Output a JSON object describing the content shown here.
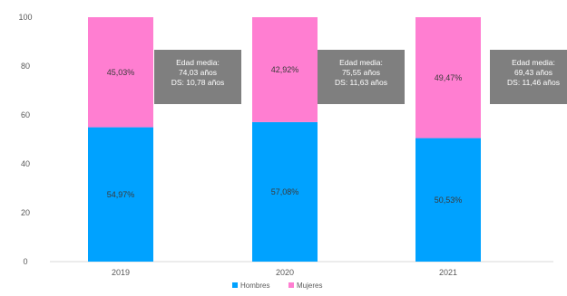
{
  "chart_data": {
    "type": "bar",
    "stacked": true,
    "categories": [
      "2019",
      "2020",
      "2021"
    ],
    "series": [
      {
        "name": "Hombres",
        "values": [
          54.97,
          57.08,
          50.53
        ],
        "labels": [
          "54,97%",
          "57,08%",
          "50,53%"
        ],
        "color": "#00a2ff"
      },
      {
        "name": "Mujeres",
        "values": [
          45.03,
          42.92,
          49.47
        ],
        "labels": [
          "45,03%",
          "42,92%",
          "49,47%"
        ],
        "color": "#ff7ed1"
      }
    ],
    "ylim": [
      0,
      100
    ],
    "yticks": [
      0,
      20,
      40,
      60,
      80,
      100
    ],
    "grid": false,
    "legend": "bottom",
    "annotations": [
      [
        "Edad media:",
        "74,03 años",
        "DS: 10,78 años"
      ],
      [
        "Edad media:",
        "75,55 años",
        "DS: 11,63 años"
      ],
      [
        "Edad media:",
        "69,43 años",
        "DS: 11,46 años"
      ]
    ],
    "annotation_color": "#7f7f7f"
  }
}
